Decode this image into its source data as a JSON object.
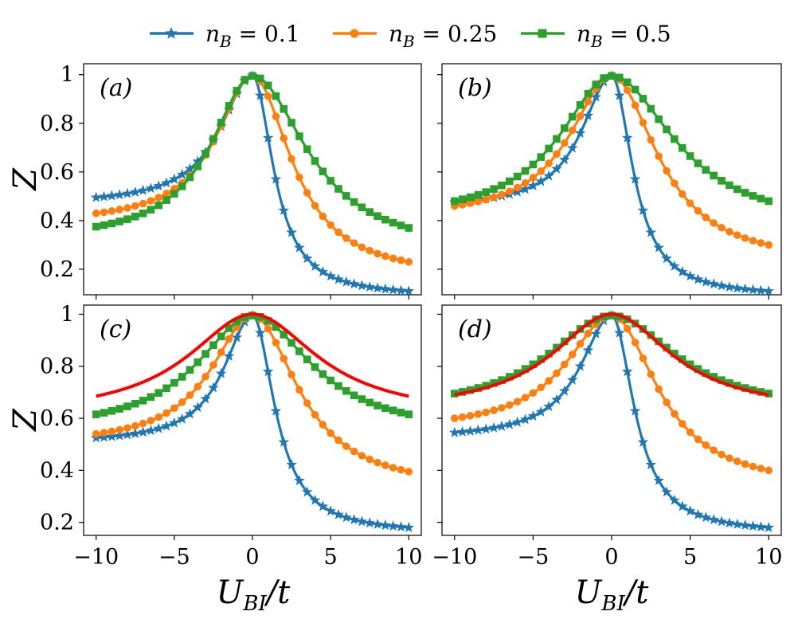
{
  "chart_data": {
    "type": "line",
    "legend": {
      "placement": "top-center",
      "entries": [
        {
          "label": "n_B = 0.1",
          "var": "n",
          "sub": "B",
          "rest": " = 0.1",
          "color": "#1f77b4",
          "marker": "star"
        },
        {
          "label": "n_B = 0.25",
          "var": "n",
          "sub": "B",
          "rest": " = 0.25",
          "color": "#ff7f0e",
          "marker": "circle"
        },
        {
          "label": "n_B = 0.5",
          "var": "n",
          "sub": "B",
          "rest": " = 0.5",
          "color": "#2ca02c",
          "marker": "square"
        }
      ]
    },
    "xlabel": {
      "main": "U",
      "sub": "BI",
      "rest": "/t"
    },
    "ylabel": "Z",
    "x_ticks": [
      "−10",
      "−5",
      "0",
      "5",
      "10"
    ],
    "y_ticks_top": [
      "0.2",
      "0.4",
      "0.6",
      "0.8",
      "1"
    ],
    "y_ticks_bottom": [
      "0.2",
      "0.4",
      "0.6",
      "0.8",
      "1"
    ],
    "xlim": [
      -10.8,
      10.8
    ],
    "grid": false,
    "red_line_color": "#ff0000",
    "panels": [
      {
        "label": "(a)",
        "ylim": [
          0.095,
          1.045
        ],
        "series": [
          {
            "name": "n_B = 0.1",
            "x_range": [
              -10,
              10
            ],
            "n_points": 41,
            "peak": 0.995,
            "left_end": 0.495,
            "right_end": 0.11,
            "w_left": 2.5,
            "w_right": 1.6
          },
          {
            "name": "n_B = 0.25",
            "x_range": [
              -10,
              10
            ],
            "n_points": 41,
            "peak": 0.995,
            "left_end": 0.43,
            "right_end": 0.23,
            "w_left": 2.8,
            "w_right": 3.0
          },
          {
            "name": "n_B = 0.5",
            "x_range": [
              -10,
              10
            ],
            "n_points": 41,
            "peak": 0.995,
            "left_end": 0.375,
            "right_end": 0.37,
            "w_left": 3.2,
            "w_right": 4.2
          }
        ]
      },
      {
        "label": "(b)",
        "ylim": [
          0.095,
          1.045
        ],
        "series": [
          {
            "name": "n_B = 0.1",
            "x_range": [
              -10,
              10
            ],
            "n_points": 41,
            "peak": 0.995,
            "left_end": 0.475,
            "right_end": 0.11,
            "w_left": 2.3,
            "w_right": 1.6
          },
          {
            "name": "n_B = 0.25",
            "x_range": [
              -10,
              10
            ],
            "n_points": 41,
            "peak": 0.995,
            "left_end": 0.46,
            "right_end": 0.3,
            "w_left": 3.2,
            "w_right": 3.5
          },
          {
            "name": "n_B = 0.5",
            "x_range": [
              -10,
              10
            ],
            "n_points": 41,
            "peak": 0.995,
            "left_end": 0.48,
            "right_end": 0.48,
            "w_left": 4.0,
            "w_right": 4.8
          }
        ]
      },
      {
        "label": "(c)",
        "ylim": [
          0.15,
          1.035
        ],
        "series": [
          {
            "name": "n_B = 0.1",
            "x_range": [
              -10,
              10
            ],
            "n_points": 41,
            "peak": 0.995,
            "left_end": 0.525,
            "right_end": 0.18,
            "w_left": 2.2,
            "w_right": 1.7
          },
          {
            "name": "n_B = 0.25",
            "x_range": [
              -10,
              10
            ],
            "n_points": 41,
            "peak": 0.995,
            "left_end": 0.54,
            "right_end": 0.395,
            "w_left": 3.2,
            "w_right": 3.5
          },
          {
            "name": "n_B = 0.5",
            "x_range": [
              -10,
              10
            ],
            "n_points": 41,
            "peak": 0.995,
            "left_end": 0.615,
            "right_end": 0.615,
            "w_left": 4.3,
            "w_right": 4.6
          }
        ],
        "red_line": {
          "x_range": [
            -10,
            10
          ],
          "peak": 1.0,
          "left_end": 0.685,
          "right_end": 0.685,
          "w_left": 5.0,
          "w_right": 5.0
        }
      },
      {
        "label": "(d)",
        "ylim": [
          0.15,
          1.035
        ],
        "series": [
          {
            "name": "n_B = 0.1",
            "x_range": [
              -10,
              10
            ],
            "n_points": 41,
            "peak": 0.995,
            "left_end": 0.545,
            "right_end": 0.18,
            "w_left": 2.4,
            "w_right": 1.7
          },
          {
            "name": "n_B = 0.25",
            "x_range": [
              -10,
              10
            ],
            "n_points": 41,
            "peak": 0.995,
            "left_end": 0.6,
            "right_end": 0.4,
            "w_left": 3.5,
            "w_right": 3.5
          },
          {
            "name": "n_B = 0.5",
            "x_range": [
              -10,
              10
            ],
            "n_points": 41,
            "peak": 0.995,
            "left_end": 0.695,
            "right_end": 0.695,
            "w_left": 5.0,
            "w_right": 5.0
          }
        ],
        "red_line": {
          "x_range": [
            -10,
            10
          ],
          "peak": 1.0,
          "left_end": 0.69,
          "right_end": 0.69,
          "w_left": 4.6,
          "w_right": 4.6
        }
      }
    ]
  }
}
